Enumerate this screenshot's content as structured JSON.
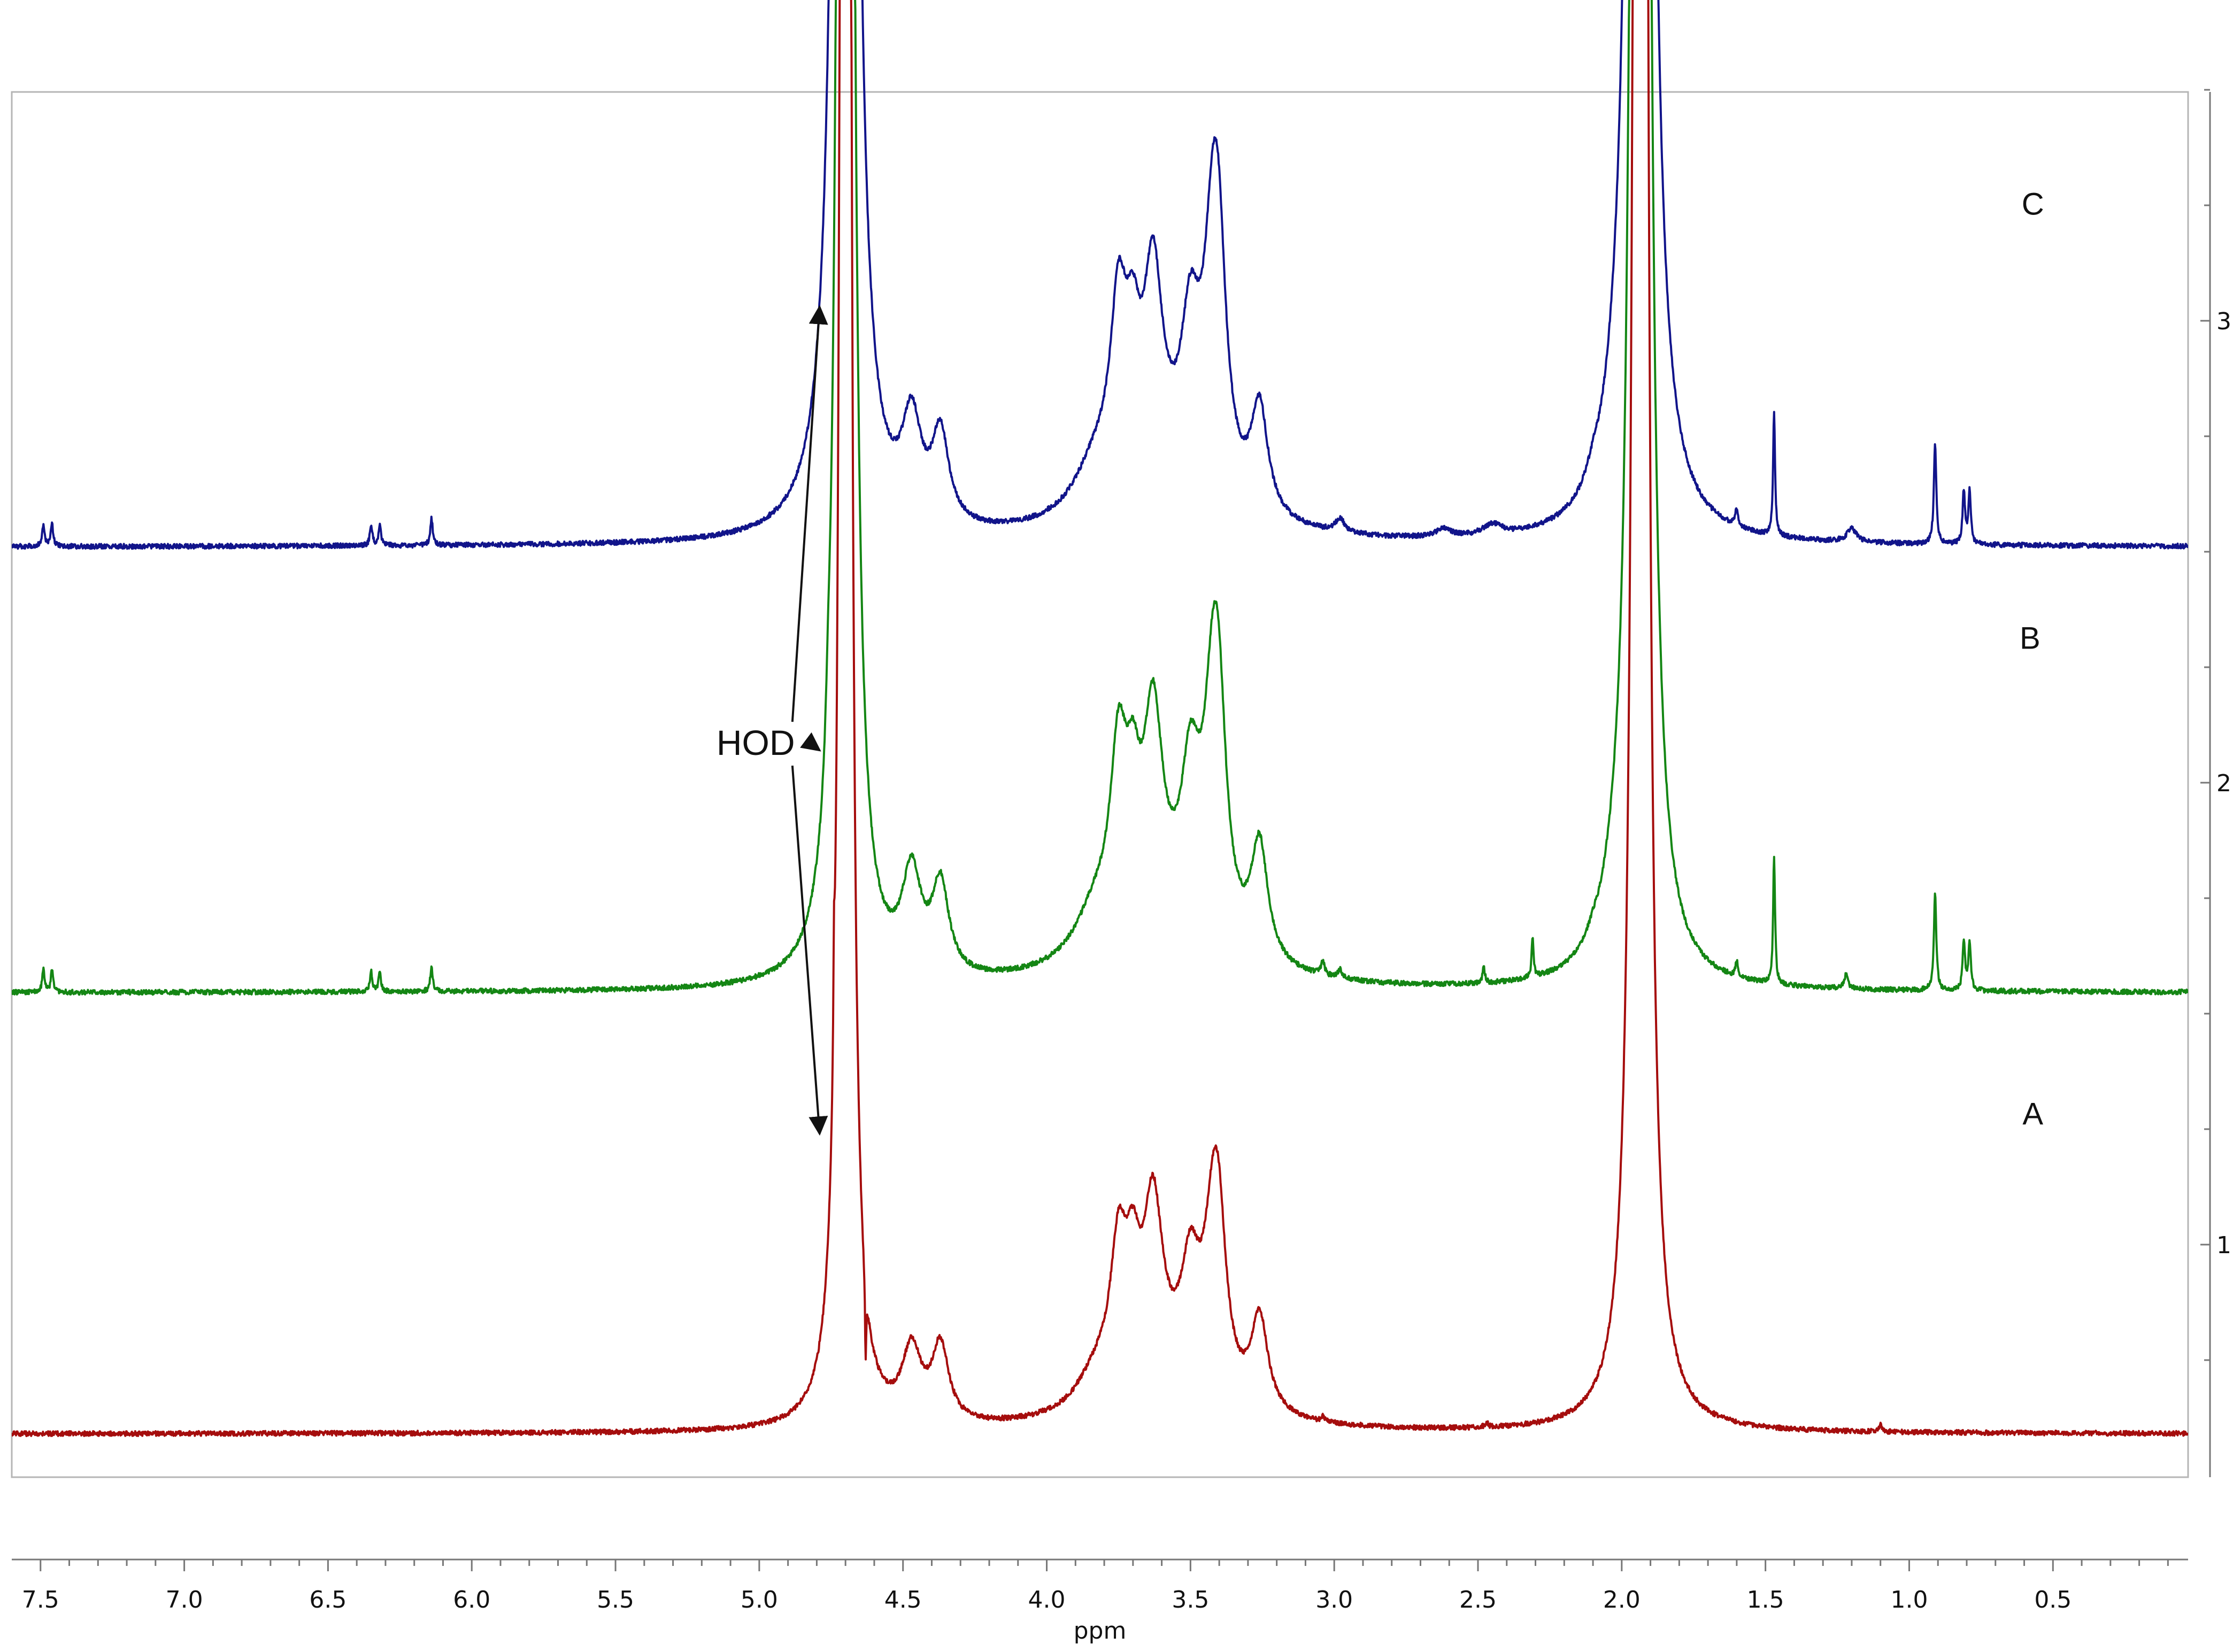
{
  "chart_data": {
    "type": "line",
    "xlabel": "ppm",
    "ylabel": "",
    "xlim": [
      7.6,
      0.03
    ],
    "x_reversed": true,
    "x_ticks": [
      "7.5",
      "7.0",
      "6.5",
      "6.0",
      "5.5",
      "5.0",
      "4.5",
      "4.0",
      "3.5",
      "3.0",
      "2.5",
      "2.0",
      "1.5",
      "1.0",
      "0.5"
    ],
    "y_ticks": [
      "1",
      "2",
      "3"
    ],
    "y_range": [
      0.59,
      3.6
    ],
    "grid": false,
    "colors": {
      "A": "#a50d0d",
      "B": "#148614",
      "C": "#11148a",
      "axis": "#777777",
      "annot": "#111111"
    },
    "series": [
      {
        "name": "A",
        "baseline": 0.59,
        "unit_height": 0.96,
        "peaks": [
          [
            4.74,
            0.22,
            0.0025
          ],
          [
            4.7,
            20.0,
            0.009
          ],
          [
            4.63,
            -0.18,
            0.0025
          ],
          [
            4.47,
            0.16,
            0.04
          ],
          [
            4.37,
            0.17,
            0.035
          ],
          [
            3.83,
            0.07,
            0.08
          ],
          [
            3.75,
            0.3,
            0.035
          ],
          [
            3.7,
            0.2,
            0.03
          ],
          [
            3.63,
            0.38,
            0.04
          ],
          [
            3.5,
            0.24,
            0.04
          ],
          [
            3.42,
            0.36,
            0.04
          ],
          [
            3.4,
            0.2,
            0.03
          ],
          [
            3.26,
            0.21,
            0.035
          ],
          [
            3.6,
            0.1,
            0.2
          ],
          [
            3.04,
            0.012,
            0.006
          ],
          [
            2.47,
            0.012,
            0.006
          ],
          [
            1.1,
            0.015,
            0.006
          ],
          [
            1.935,
            20.0,
            0.012
          ]
        ]
      },
      {
        "name": "B",
        "baseline": 1.545,
        "unit_height": 0.96,
        "peaks": [
          [
            7.49,
            0.05,
            0.005
          ],
          [
            7.46,
            0.05,
            0.005
          ],
          [
            6.35,
            0.045,
            0.005
          ],
          [
            6.32,
            0.045,
            0.005
          ],
          [
            6.14,
            0.055,
            0.005
          ],
          [
            4.76,
            0.08,
            0.01
          ],
          [
            4.7,
            20.0,
            0.012
          ],
          [
            4.47,
            0.22,
            0.04
          ],
          [
            4.37,
            0.2,
            0.035
          ],
          [
            3.83,
            0.1,
            0.09
          ],
          [
            3.75,
            0.38,
            0.035
          ],
          [
            3.7,
            0.22,
            0.03
          ],
          [
            3.63,
            0.45,
            0.04
          ],
          [
            3.5,
            0.32,
            0.04
          ],
          [
            3.42,
            0.52,
            0.04
          ],
          [
            3.4,
            0.25,
            0.03
          ],
          [
            3.26,
            0.26,
            0.035
          ],
          [
            3.6,
            0.12,
            0.22
          ],
          [
            3.04,
            0.03,
            0.008
          ],
          [
            2.98,
            0.02,
            0.008
          ],
          [
            2.48,
            0.035,
            0.005
          ],
          [
            2.31,
            0.09,
            0.004
          ],
          [
            2.1,
            0.02,
            0.03
          ],
          [
            2.03,
            0.06,
            0.05
          ],
          [
            1.935,
            20.0,
            0.014
          ],
          [
            1.6,
            0.035,
            0.005
          ],
          [
            1.47,
            0.29,
            0.004
          ],
          [
            1.22,
            0.03,
            0.008
          ],
          [
            0.91,
            0.22,
            0.005
          ],
          [
            0.81,
            0.11,
            0.005
          ],
          [
            0.79,
            0.11,
            0.005
          ]
        ]
      },
      {
        "name": "C",
        "baseline": 2.51,
        "unit_height": 0.96,
        "peaks": [
          [
            7.49,
            0.05,
            0.005
          ],
          [
            7.46,
            0.05,
            0.005
          ],
          [
            6.35,
            0.045,
            0.005
          ],
          [
            6.32,
            0.045,
            0.005
          ],
          [
            6.14,
            0.06,
            0.005
          ],
          [
            4.7,
            20.0,
            0.015
          ],
          [
            4.47,
            0.22,
            0.04
          ],
          [
            4.37,
            0.2,
            0.035
          ],
          [
            3.83,
            0.1,
            0.09
          ],
          [
            3.75,
            0.38,
            0.035
          ],
          [
            3.7,
            0.22,
            0.03
          ],
          [
            3.63,
            0.44,
            0.04
          ],
          [
            3.5,
            0.32,
            0.04
          ],
          [
            3.42,
            0.56,
            0.04
          ],
          [
            3.4,
            0.25,
            0.03
          ],
          [
            3.26,
            0.24,
            0.035
          ],
          [
            3.6,
            0.12,
            0.22
          ],
          [
            2.98,
            0.03,
            0.02
          ],
          [
            2.62,
            0.02,
            0.03
          ],
          [
            2.45,
            0.025,
            0.04
          ],
          [
            2.1,
            0.03,
            0.03
          ],
          [
            2.03,
            0.06,
            0.05
          ],
          [
            1.935,
            20.0,
            0.016
          ],
          [
            1.6,
            0.04,
            0.006
          ],
          [
            1.47,
            0.28,
            0.004
          ],
          [
            1.2,
            0.03,
            0.02
          ],
          [
            0.91,
            0.23,
            0.005
          ],
          [
            0.81,
            0.12,
            0.005
          ],
          [
            0.79,
            0.12,
            0.005
          ]
        ]
      }
    ],
    "trace_labels": [
      {
        "text": "A",
        "x": 0.57,
        "y": 1.26
      },
      {
        "text": "B",
        "x": 0.58,
        "y": 2.29
      },
      {
        "text": "C",
        "x": 0.57,
        "y": 3.23
      }
    ],
    "annotation": {
      "text": "HOD",
      "x": 5.0,
      "y": 2.06,
      "arrow_targets": [
        [
          4.79,
          3.03
        ],
        [
          4.79,
          2.07
        ],
        [
          4.79,
          1.24
        ]
      ]
    }
  }
}
